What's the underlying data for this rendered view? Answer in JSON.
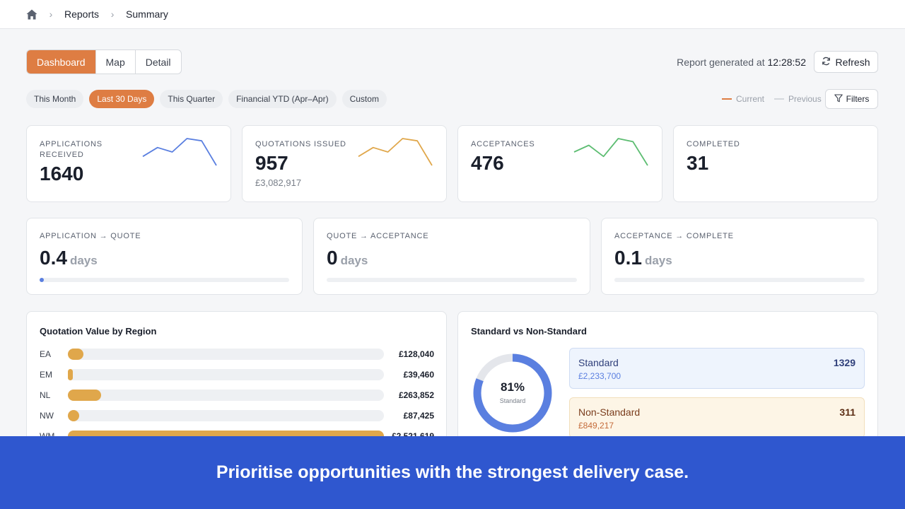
{
  "breadcrumb": {
    "items": [
      "Reports",
      "Summary"
    ]
  },
  "tabs": [
    {
      "label": "Dashboard",
      "active": true
    },
    {
      "label": "Map",
      "active": false
    },
    {
      "label": "Detail",
      "active": false
    }
  ],
  "report": {
    "generated_label": "Report generated at",
    "time": "12:28:52",
    "refresh_label": "Refresh"
  },
  "periods": [
    {
      "label": "This Month",
      "active": false
    },
    {
      "label": "Last 30 Days",
      "active": true
    },
    {
      "label": "This Quarter",
      "active": false
    },
    {
      "label": "Financial YTD (Apr–Apr)",
      "active": false
    },
    {
      "label": "Custom",
      "active": false
    }
  ],
  "legend": {
    "current": "Current",
    "previous": "Previous",
    "current_color": "#de7d43",
    "previous_color": "#c9ccd2"
  },
  "filters_label": "Filters",
  "kpis": [
    {
      "label": "APPLICATIONS RECEIVED",
      "value": "1640",
      "sub": "",
      "color": "#5a7fe0",
      "spark": [
        3,
        5,
        4,
        7,
        6.5,
        1
      ]
    },
    {
      "label": "QUOTATIONS ISSUED",
      "value": "957",
      "sub": "£3,082,917",
      "color": "#e0a74b",
      "spark": [
        3,
        5,
        4,
        7,
        6.5,
        1
      ]
    },
    {
      "label": "ACCEPTANCES",
      "value": "476",
      "sub": "",
      "color": "#5dbd72",
      "spark": [
        4,
        5.5,
        3,
        7,
        6.3,
        1
      ]
    },
    {
      "label": "COMPLETED",
      "value": "31",
      "sub": "",
      "color": "",
      "spark": []
    }
  ],
  "conversions": [
    {
      "label": "APPLICATION → QUOTE",
      "value": "0.4",
      "unit": "days",
      "progress": 0.015
    },
    {
      "label": "QUOTE → ACCEPTANCE",
      "value": "0",
      "unit": "days",
      "progress": 0
    },
    {
      "label": "ACCEPTANCE → COMPLETE",
      "value": "0.1",
      "unit": "days",
      "progress": 0
    }
  ],
  "region_panel": {
    "title": "Quotation Value by Region",
    "rows": [
      {
        "region": "EA",
        "value": "£128,040",
        "fraction": 0.05
      },
      {
        "region": "EM",
        "value": "£39,460",
        "fraction": 0.015
      },
      {
        "region": "NL",
        "value": "£263,852",
        "fraction": 0.105
      },
      {
        "region": "NW",
        "value": "£87,425",
        "fraction": 0.035
      },
      {
        "region": "WM",
        "value": "£2,521,619",
        "fraction": 1.0
      }
    ]
  },
  "standard_panel": {
    "title": "Standard vs Non-Standard",
    "percent": "81%",
    "percent_label": "Standard",
    "standard_fraction": 0.81,
    "standard": {
      "name": "Standard",
      "amount": "£2,233,700",
      "count": "1329"
    },
    "non_standard": {
      "name": "Non-Standard",
      "amount": "£849,217",
      "count": "311"
    }
  },
  "banner": {
    "text": "Prioritise opportunities with the strongest delivery case."
  }
}
